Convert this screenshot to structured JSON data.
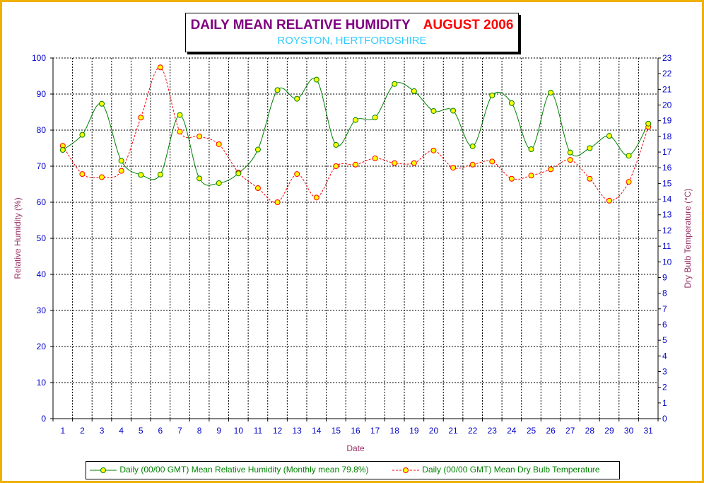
{
  "title": {
    "main": "DAILY MEAN RELATIVE HUMIDITY",
    "month": "AUGUST 2006",
    "location": "ROYSTON, HERTFORDSHIRE"
  },
  "chart_data": {
    "type": "line",
    "xlabel": "Date",
    "ylabel": "Relative Humidity (%)",
    "y2label": "Dry Bulb Temperature (°C)",
    "categories": [
      1,
      2,
      3,
      4,
      5,
      6,
      7,
      8,
      9,
      10,
      11,
      12,
      13,
      14,
      15,
      16,
      17,
      18,
      19,
      20,
      21,
      22,
      23,
      24,
      25,
      26,
      27,
      28,
      29,
      30,
      31
    ],
    "ylim": [
      0,
      100
    ],
    "y_ticks": [
      0,
      10,
      20,
      30,
      40,
      50,
      60,
      70,
      80,
      90,
      100
    ],
    "y2lim": [
      0,
      23
    ],
    "y2_ticks": [
      0,
      1,
      2,
      3,
      4,
      5,
      6,
      7,
      8,
      9,
      10,
      11,
      12,
      13,
      14,
      15,
      16,
      17,
      18,
      19,
      20,
      21,
      22,
      23
    ],
    "grid": true,
    "legend_position": "bottom",
    "series": [
      {
        "name": "Daily (00/00 GMT) Mean Relative Humidity (Monthly mean 79.8%)",
        "axis": "left",
        "color": "#008000",
        "marker_color": "#ffff00",
        "style": "solid",
        "values": [
          74.5,
          78.7,
          87.3,
          71.5,
          67.6,
          67.7,
          84.2,
          66.6,
          65.3,
          68.0,
          74.6,
          91.1,
          88.7,
          94.0,
          75.9,
          82.8,
          83.5,
          92.8,
          90.8,
          85.3,
          85.4,
          75.5,
          89.6,
          87.5,
          74.7,
          90.4,
          73.8,
          75.0,
          78.4,
          72.9,
          81.8
        ]
      },
      {
        "name": "Daily (00/00 GMT) Mean Dry Bulb Temperature",
        "axis": "right",
        "color": "#ff0000",
        "marker_color": "#ffff00",
        "style": "dashed",
        "values": [
          17.4,
          15.6,
          15.4,
          15.8,
          19.2,
          22.4,
          18.3,
          18.0,
          17.5,
          15.7,
          14.7,
          13.8,
          15.6,
          14.1,
          16.1,
          16.2,
          16.6,
          16.3,
          16.3,
          17.1,
          16.0,
          16.2,
          16.4,
          15.3,
          15.5,
          15.9,
          16.5,
          15.3,
          13.9,
          15.1,
          18.6
        ]
      }
    ]
  },
  "colors": {
    "frame": "#f0b000",
    "axis_text": "#0000cc",
    "axis_title": "#993366"
  }
}
